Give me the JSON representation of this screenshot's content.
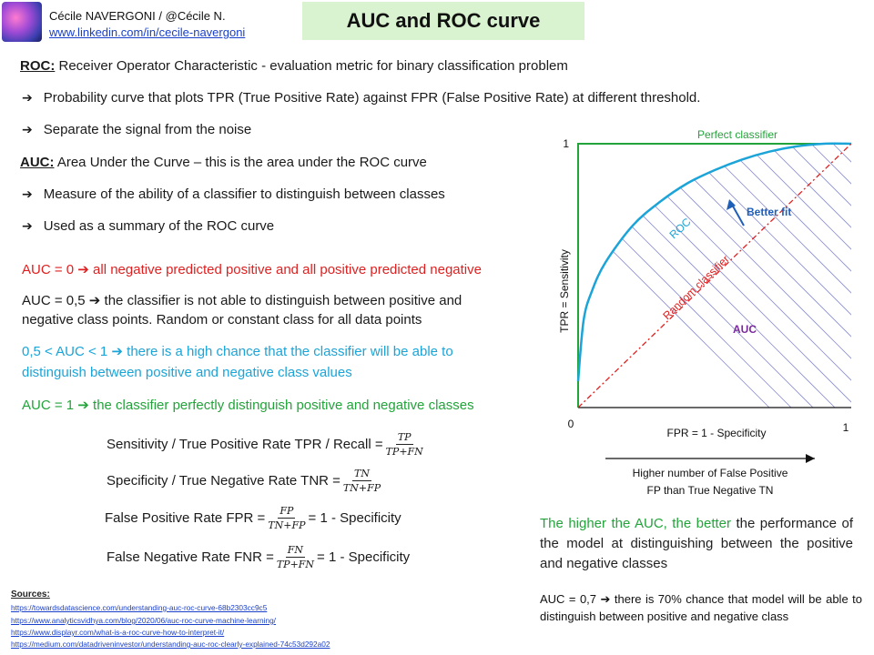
{
  "header": {
    "author": "Cécile NAVERGONI / @Cécile N.",
    "link": "www.linkedin.com/in/cecile-navergoni",
    "title": "AUC and ROC curve"
  },
  "roc_def": {
    "term": "ROC:",
    "text": " Receiver Operator Characteristic - evaluation metric for binary classification problem"
  },
  "roc_bullets": [
    "Probability curve that plots TPR (True Positive Rate) against FPR (False Positive Rate) at different threshold.",
    "Separate the signal from the noise"
  ],
  "auc_def": {
    "term": "AUC:",
    "text": " Area Under the Curve – this is the area under the ROC curve"
  },
  "auc_bullets": [
    "Measure of the ability of a classifier to distinguish between classes",
    "Used as a summary of the ROC curve"
  ],
  "bullet_glyph": "➔",
  "cases": {
    "auc0": {
      "prefix": "AUC = 0",
      "text": "all negative predicted positive and all positive predicted negative"
    },
    "auc05": {
      "prefix": "AUC = 0,5",
      "line1": "the classifier is not able to distinguish between positive and",
      "line2": "negative class points. Random or constant class for all data points"
    },
    "auc_mid": {
      "prefix": "0,5 < AUC < 1",
      "line1": "there is a high chance that the classifier will be able to",
      "line2": "distinguish between positive and negative class values"
    },
    "auc1": {
      "prefix": "AUC = 1",
      "text": "the classifier perfectly distinguish positive and negative classes"
    }
  },
  "formulas": {
    "sensitivity": {
      "label": "Sensitivity / True Positive Rate TPR / Recall =",
      "num": "TP",
      "den": "TP+FN",
      "suffix": ""
    },
    "specificity": {
      "label": "Specificity / True Negative Rate TNR =",
      "num": "TN",
      "den": "TN+FP",
      "suffix": ""
    },
    "fpr": {
      "label": "False Positive Rate FPR =",
      "num": "FP",
      "den": "TN+FP",
      "suffix": "= 1 - Specificity"
    },
    "fnr": {
      "label": "False Negative Rate FNR =",
      "num": "FN",
      "den": "TP+FN",
      "suffix": "= 1 - Specificity"
    }
  },
  "sources": {
    "heading": "Sources:",
    "links": [
      "https://towardsdatascience.com/understanding-auc-roc-curve-68b2303cc9c5",
      "https://www.analyticsvidhya.com/blog/2020/06/auc-roc-curve-machine-learning/",
      "https://www.displayr.com/what-is-a-roc-curve-how-to-interpret-it/",
      "https://medium.com/datadriveninvestor/understanding-auc-roc-clearly-explained-74c53d292a02"
    ]
  },
  "chart_data": {
    "type": "line",
    "xlabel": "FPR =  1 - Specificity",
    "ylabel": "TPR =  Sensitivity",
    "xlim": [
      0,
      1
    ],
    "ylim": [
      0,
      1
    ],
    "x_ticks": [
      "0",
      "1"
    ],
    "y_ticks": [
      "1"
    ],
    "series": [
      {
        "name": "Perfect classifier",
        "color": "#22a43a",
        "x": [
          0,
          0,
          1
        ],
        "y": [
          0,
          1,
          1
        ]
      },
      {
        "name": "ROC",
        "color": "#1ba4d8",
        "x": [
          0.0,
          0.02,
          0.05,
          0.1,
          0.2,
          0.3,
          0.4,
          0.5,
          0.6,
          0.7,
          0.8,
          0.9,
          1.0
        ],
        "y": [
          0.1,
          0.33,
          0.44,
          0.55,
          0.69,
          0.78,
          0.85,
          0.9,
          0.94,
          0.97,
          0.99,
          1.0,
          1.0
        ]
      },
      {
        "name": "Random classifier",
        "color": "#e02020",
        "x": [
          0,
          1
        ],
        "y": [
          0,
          1
        ]
      }
    ],
    "annotations": {
      "better_fit": "Better fit",
      "auc": "AUC"
    },
    "colors": {
      "axis": "#111111",
      "hatch": "#8a8fd0",
      "better_fit": "#1f5fb8",
      "auc": "#7a2a9a"
    }
  },
  "chart_caption": {
    "line1": "Higher number of False Positive",
    "line2": "FP than True Negative TN"
  },
  "conclusion": {
    "highlight": "The higher the AUC, the better",
    "text": " the performance of the model at distinguishing between the positive and negative classes"
  },
  "example": {
    "prefix": "AUC = 0,7",
    "text": "there is 70% chance that model will be able to distinguish between positive and negative class"
  }
}
